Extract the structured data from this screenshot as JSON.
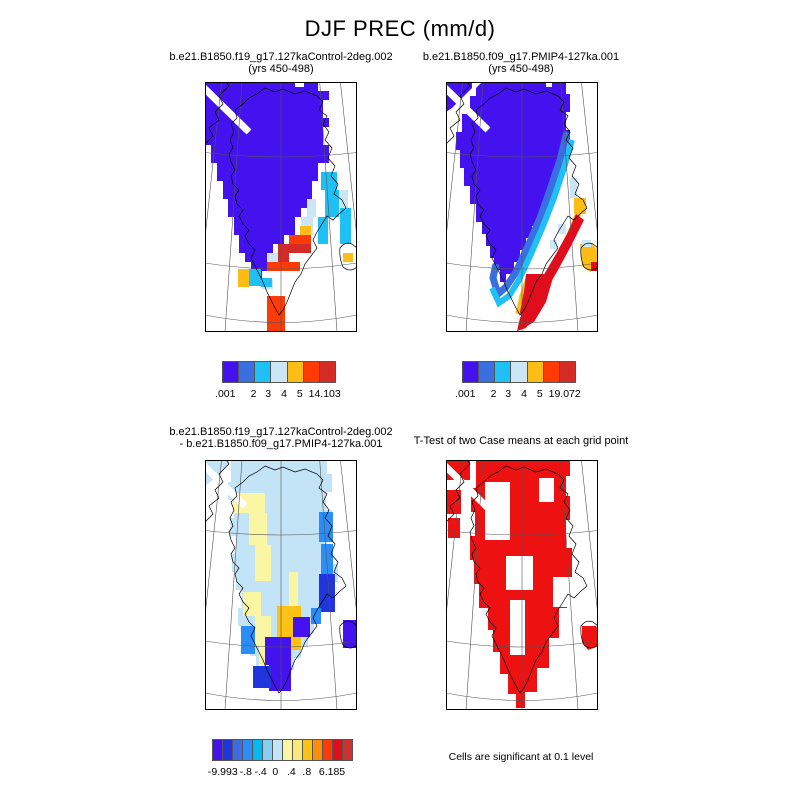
{
  "header": {
    "title": "DJF PREC (mm/d)"
  },
  "panels": {
    "top_left": {
      "title_line1": "b.e21.B1850.f19_g17.127kaControl-2deg.002",
      "title_line2": "(yrs 450-498)"
    },
    "top_right": {
      "title_line1": "b.e21.B1850.f09_g17.PMIP4-127ka.001",
      "title_line2": "(yrs 450-498)"
    },
    "bottom_left": {
      "title_line1": "b.e21.B1850.f19_g17.127kaControl-2deg.002",
      "title_line2": "- b.e21.B1850.f09_g17.PMIP4-127ka.001"
    },
    "bottom_right": {
      "title": "T-Test of two Case means at each grid point",
      "caption": "Cells are significant at 0.1 level"
    }
  },
  "colorbars": {
    "top_left": {
      "colors": [
        "#4412ee",
        "#3a6fe0",
        "#1fc0f5",
        "#cce6f5",
        "#fdbd14",
        "#fe3a06",
        "#d32b28"
      ],
      "labels": [
        ".001",
        "2",
        "3",
        "4",
        "5",
        "14.103"
      ],
      "positions": [
        2,
        27,
        40,
        54,
        68,
        90
      ]
    },
    "top_right": {
      "colors": [
        "#4412ee",
        "#3a6fe0",
        "#1fc0f5",
        "#cce6f5",
        "#fdbd14",
        "#fe3a06",
        "#d32b28"
      ],
      "labels": [
        ".001",
        "2",
        "3",
        "4",
        "5",
        "19.072"
      ],
      "positions": [
        2,
        27,
        40,
        54,
        68,
        90
      ]
    },
    "bottom_left": {
      "colors": [
        "#4412ee",
        "#2135de",
        "#3e6be2",
        "#2b8df7",
        "#04b8f1",
        "#86cdf0",
        "#c3e3f6",
        "#fbf6a4",
        "#f9e97c",
        "#fdc214",
        "#fd8d0d",
        "#fe3a06",
        "#e00d1c",
        "#cc3330"
      ],
      "labels": [
        "-9.993",
        "-.8",
        "-.4",
        "0",
        ".4",
        ".8",
        "6.185"
      ],
      "positions": [
        7,
        23.5,
        34,
        44.5,
        56,
        67,
        85
      ]
    }
  },
  "chart_data": {
    "type": "heatmap",
    "subtype": "lat-lon map panels (polar stereographic, Greenland)",
    "title": "DJF PREC (mm/d)",
    "units": "mm/d",
    "region": "Greenland",
    "panels": [
      {
        "position": "top-left",
        "case": "b.e21.B1850.f19_g17.127kaControl-2deg.002",
        "years": "yrs 450-498",
        "data_min": 0.001,
        "data_max": 14.103,
        "colorbar_labels": [
          ".001",
          "2",
          "3",
          "4",
          "5",
          "14.103"
        ],
        "colorbar_colors": [
          "#4412ee",
          "#3a6fe0",
          "#1fc0f5",
          "#cce6f5",
          "#fdbd14",
          "#fe3a06",
          "#d32b28"
        ],
        "description": "Interior of Greenland dark blue-violet (<2 mm/d); cyan and pale-blue band along southeast edge; orange and red cells (4-14 mm/d) along the southern/southeastern coastal margin with a red tongue at the southern tip."
      },
      {
        "position": "top-right",
        "case": "b.e21.B1850.f09_g17.PMIP4-127ka.001",
        "years": "yrs 450-498",
        "data_min": 0.001,
        "data_max": 19.072,
        "colorbar_labels": [
          ".001",
          "2",
          "3",
          "4",
          "5",
          "19.072"
        ],
        "colorbar_colors": [
          "#4412ee",
          "#3a6fe0",
          "#1fc0f5",
          "#cce6f5",
          "#fdbd14",
          "#fe3a06",
          "#d32b28"
        ],
        "description": "Violet interior with continuous blue then cyan bands along the east coast; orange and red bands (5-19 mm/d) hugging the southeast coast and southern tip; small orange/red patch over Iceland."
      },
      {
        "position": "bottom-left",
        "case": "b.e21.B1850.f19_g17.127kaControl-2deg.002 - b.e21.B1850.f09_g17.PMIP4-127ka.001",
        "data_min": -9.993,
        "data_max": 6.185,
        "colorbar_labels": [
          "-9.993",
          "-.8",
          "-.4",
          "0",
          ".4",
          ".8",
          "6.185"
        ],
        "colorbar_colors": [
          "#4412ee",
          "#2135de",
          "#3e6be2",
          "#2b8df7",
          "#04b8f1",
          "#86cdf0",
          "#c3e3f6",
          "#fbf6a4",
          "#f9e97c",
          "#fdc214",
          "#fd8d0d",
          "#fe3a06",
          "#e00d1c",
          "#cc3330"
        ],
        "description": "Mostly pale light-blue (small negative differences) with pale-yellow strips in the northwest/center, a gold patch in the south-center, and deep blue-violet cells (strong negative) along the southeast coast, the southern tip and Iceland."
      },
      {
        "position": "bottom-right",
        "title": "T-Test of two Case means at each grid point",
        "note": "Cells are significant at 0.1 level",
        "significant_color": "#ee1111",
        "description": "Red cells mark grid points where the two case means differ significantly at the 0.1 level; red covers most of Greenland and Iceland with scattered white (non-significant) holes."
      }
    ]
  }
}
